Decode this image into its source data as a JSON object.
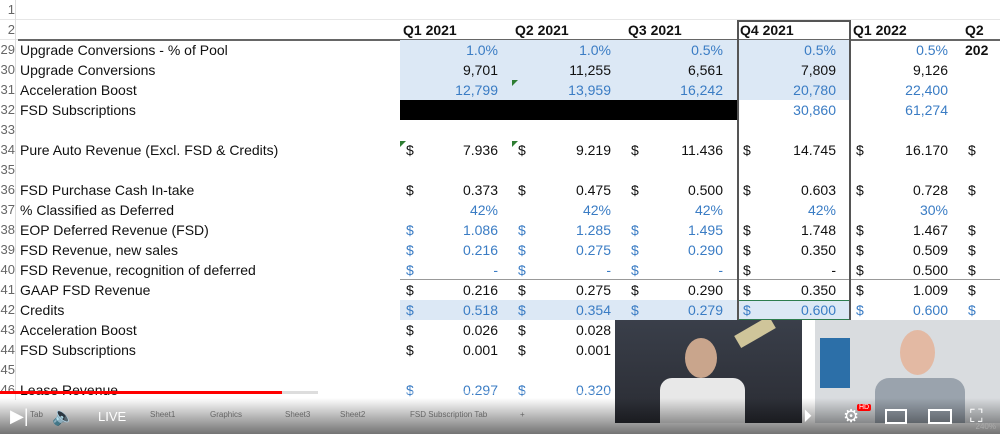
{
  "headers": [
    "Q1 2021",
    "Q2 2021",
    "Q3 2021",
    "Q4 2021",
    "Q1 2022",
    "Q2 202"
  ],
  "top_rows": [
    "1",
    "2"
  ],
  "rows": [
    {
      "n": "29",
      "label": "Upgrade Conversions - % of Pool",
      "cells": [
        {
          "v": "1.0%",
          "c": "blue"
        },
        {
          "v": "1.0%",
          "c": "blue"
        },
        {
          "v": "0.5%",
          "c": "blue"
        },
        {
          "v": "0.5%",
          "c": "blue"
        },
        {
          "v": "0.5%",
          "c": "blue"
        }
      ]
    },
    {
      "n": "30",
      "label": "Upgrade Conversions",
      "cells": [
        {
          "v": "9,701"
        },
        {
          "v": "11,255"
        },
        {
          "v": "6,561"
        },
        {
          "v": "7,809"
        },
        {
          "v": "9,126"
        }
      ]
    },
    {
      "n": "31",
      "label": "Acceleration Boost",
      "cells": [
        {
          "v": "12,799",
          "c": "blue"
        },
        {
          "v": "13,959",
          "c": "blue"
        },
        {
          "v": "16,242",
          "c": "blue"
        },
        {
          "v": "20,780",
          "c": "blue"
        },
        {
          "v": "22,400",
          "c": "blue"
        }
      ]
    },
    {
      "n": "32",
      "label": "FSD Subscriptions",
      "cells": [
        {
          "v": ""
        },
        {
          "v": ""
        },
        {
          "v": ""
        },
        {
          "v": "30,860",
          "c": "blue"
        },
        {
          "v": "61,274",
          "c": "blue"
        }
      ]
    },
    {
      "n": "33",
      "label": "",
      "cells": []
    },
    {
      "n": "34",
      "label": "Pure Auto Revenue (Excl. FSD & Credits)",
      "cells": [
        {
          "d": "$",
          "v": "7.936"
        },
        {
          "d": "$",
          "v": "9.219"
        },
        {
          "d": "$",
          "v": "11.436"
        },
        {
          "d": "$",
          "v": "14.745"
        },
        {
          "d": "$",
          "v": "16.170"
        },
        {
          "d": "$",
          "v": ""
        }
      ]
    },
    {
      "n": "35",
      "label": "",
      "cells": []
    },
    {
      "n": "36",
      "label": "FSD Purchase Cash In-take",
      "cells": [
        {
          "d": "$",
          "v": "0.373"
        },
        {
          "d": "$",
          "v": "0.475"
        },
        {
          "d": "$",
          "v": "0.500"
        },
        {
          "d": "$",
          "v": "0.603"
        },
        {
          "d": "$",
          "v": "0.728"
        },
        {
          "d": "$",
          "v": ""
        }
      ]
    },
    {
      "n": "37",
      "label": "% Classified as Deferred",
      "cells": [
        {
          "v": "42%",
          "c": "blue"
        },
        {
          "v": "42%",
          "c": "blue"
        },
        {
          "v": "42%",
          "c": "blue"
        },
        {
          "v": "42%",
          "c": "blue"
        },
        {
          "v": "30%",
          "c": "blue"
        }
      ]
    },
    {
      "n": "38",
      "label": "EOP Deferred Revenue (FSD)",
      "cells": [
        {
          "d": "$",
          "v": "1.086",
          "c": "blue"
        },
        {
          "d": "$",
          "v": "1.285",
          "c": "blue"
        },
        {
          "d": "$",
          "v": "1.495",
          "c": "blue"
        },
        {
          "d": "$",
          "v": "1.748"
        },
        {
          "d": "$",
          "v": "1.467"
        },
        {
          "d": "$",
          "v": ""
        }
      ]
    },
    {
      "n": "39",
      "label": "FSD Revenue, new sales",
      "cells": [
        {
          "d": "$",
          "v": "0.216",
          "c": "blue"
        },
        {
          "d": "$",
          "v": "0.275",
          "c": "blue"
        },
        {
          "d": "$",
          "v": "0.290",
          "c": "blue"
        },
        {
          "d": "$",
          "v": "0.350"
        },
        {
          "d": "$",
          "v": "0.509"
        },
        {
          "d": "$",
          "v": ""
        }
      ]
    },
    {
      "n": "40",
      "label": "FSD Revenue, recognition of deferred",
      "cells": [
        {
          "d": "$",
          "v": "-",
          "c": "blue"
        },
        {
          "d": "$",
          "v": "-",
          "c": "blue"
        },
        {
          "d": "$",
          "v": "-",
          "c": "blue"
        },
        {
          "d": "$",
          "v": "-"
        },
        {
          "d": "$",
          "v": "0.500"
        },
        {
          "d": "$",
          "v": ""
        }
      ]
    },
    {
      "n": "41",
      "label": "GAAP FSD Revenue",
      "cells": [
        {
          "d": "$",
          "v": "0.216"
        },
        {
          "d": "$",
          "v": "0.275"
        },
        {
          "d": "$",
          "v": "0.290"
        },
        {
          "d": "$",
          "v": "0.350"
        },
        {
          "d": "$",
          "v": "1.009"
        },
        {
          "d": "$",
          "v": ""
        }
      ]
    },
    {
      "n": "42",
      "label": "Credits",
      "cells": [
        {
          "d": "$",
          "v": "0.518",
          "c": "blue"
        },
        {
          "d": "$",
          "v": "0.354",
          "c": "blue"
        },
        {
          "d": "$",
          "v": "0.279",
          "c": "blue"
        },
        {
          "d": "$",
          "v": "0.600",
          "c": "blue"
        },
        {
          "d": "$",
          "v": "0.600",
          "c": "blue"
        },
        {
          "d": "$",
          "v": "",
          "c": "blue"
        }
      ]
    },
    {
      "n": "43",
      "label": "Acceleration Boost",
      "cells": [
        {
          "d": "$",
          "v": "0.026"
        },
        {
          "d": "$",
          "v": "0.028"
        }
      ]
    },
    {
      "n": "44",
      "label": "FSD Subscriptions",
      "cells": [
        {
          "d": "$",
          "v": "0.001"
        },
        {
          "d": "$",
          "v": "0.001"
        }
      ]
    },
    {
      "n": "45",
      "label": "",
      "cells": []
    },
    {
      "n": "46",
      "label": "Lease Revenue",
      "cells": [
        {
          "d": "$",
          "v": "0.297",
          "c": "blue"
        },
        {
          "d": "$",
          "v": "0.320",
          "c": "blue"
        }
      ]
    }
  ],
  "sheet_tabs": [
    "Tab",
    "Sheet1",
    "Graphics",
    "Sheet3",
    "Sheet2",
    "FSD Subscription Tab",
    "+"
  ],
  "player": {
    "live_label": "LIVE",
    "hd_badge": "HD",
    "zoom": "240%",
    "played_fraction": 0.282,
    "accent": "#ff0000"
  }
}
